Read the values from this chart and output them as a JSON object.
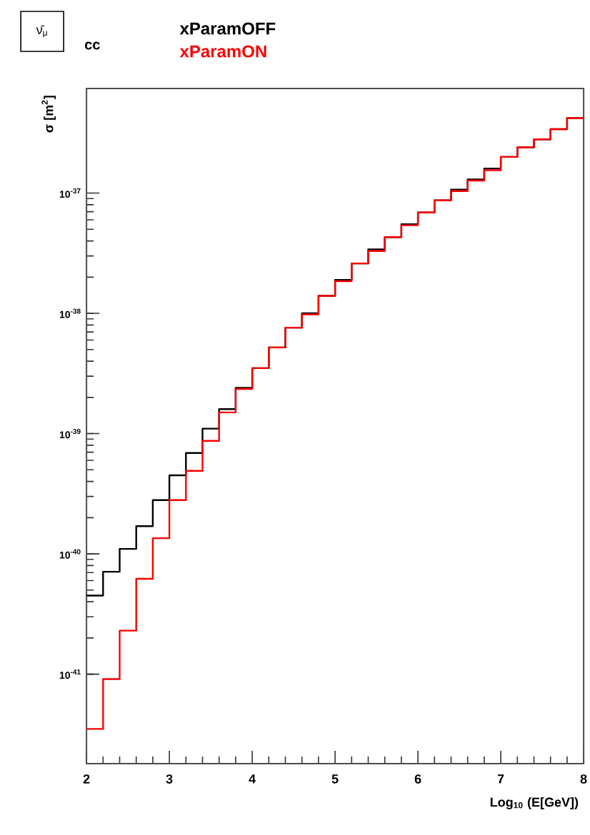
{
  "chart_data": {
    "type": "histogram",
    "annotations": [
      "ν̄$_{μ}$",
      "cc"
    ],
    "xlabel": "Log$_{10}$ (E[GeV])",
    "ylabel": "σ [m$^{2}$]",
    "bins": [
      2.0,
      2.2,
      2.4,
      2.6,
      2.8,
      3.0,
      3.2,
      3.4,
      3.6,
      3.8,
      4.0,
      4.2,
      4.4,
      4.6,
      4.8,
      5.0,
      5.2,
      5.4,
      5.6,
      5.8,
      6.0,
      6.2,
      6.4,
      6.6,
      6.8,
      7.0,
      7.2,
      7.4,
      7.6,
      7.8,
      8.0
    ],
    "series": [
      {
        "name": "xParamOFF",
        "color": "#000000",
        "values": [
          4.5e-41,
          7.1e-41,
          1.1e-40,
          1.7e-40,
          2.8e-40,
          4.5e-40,
          6.9e-40,
          1.1e-39,
          1.6e-39,
          2.4e-39,
          3.5e-39,
          5.2e-39,
          7.6e-39,
          1e-38,
          1.4e-38,
          1.9e-38,
          2.6e-38,
          3.4e-38,
          4.3e-38,
          5.5e-38,
          6.9e-38,
          8.7e-38,
          1.07e-37,
          1.3e-37,
          1.6e-37,
          2e-37,
          2.4e-37,
          2.8e-37,
          3.4e-37,
          4.2e-37
        ]
      },
      {
        "name": "xParamON",
        "color": "#ff0000",
        "values": [
          3.5e-42,
          9.1e-42,
          2.3e-41,
          6.2e-41,
          1.35e-40,
          2.8e-40,
          4.9e-40,
          8.7e-40,
          1.5e-39,
          2.35e-39,
          3.5e-39,
          5.2e-39,
          7.6e-39,
          9.8e-39,
          1.4e-38,
          1.85e-38,
          2.6e-38,
          3.3e-38,
          4.3e-38,
          5.4e-38,
          6.9e-38,
          8.7e-38,
          1.04e-37,
          1.27e-37,
          1.55e-37,
          2e-37,
          2.4e-37,
          2.8e-37,
          3.4e-37,
          4.2e-37
        ]
      }
    ],
    "log": "y",
    "legend": "top",
    "xlim": [
      2,
      8
    ],
    "xticks": [
      2,
      3,
      4,
      5,
      6,
      7,
      8
    ],
    "ylim": [
      1.8e-42,
      7.4e-37
    ],
    "yticks": [
      {
        "value": 1e-41,
        "label": "10$^{-41}$"
      },
      {
        "value": 1e-40,
        "label": "10$^{-40}$"
      },
      {
        "value": 1e-39,
        "label": "10$^{-39}$"
      },
      {
        "value": 1e-38,
        "label": "10$^{-38}$"
      },
      {
        "value": 1e-37,
        "label": "10$^{-37}$"
      }
    ]
  }
}
